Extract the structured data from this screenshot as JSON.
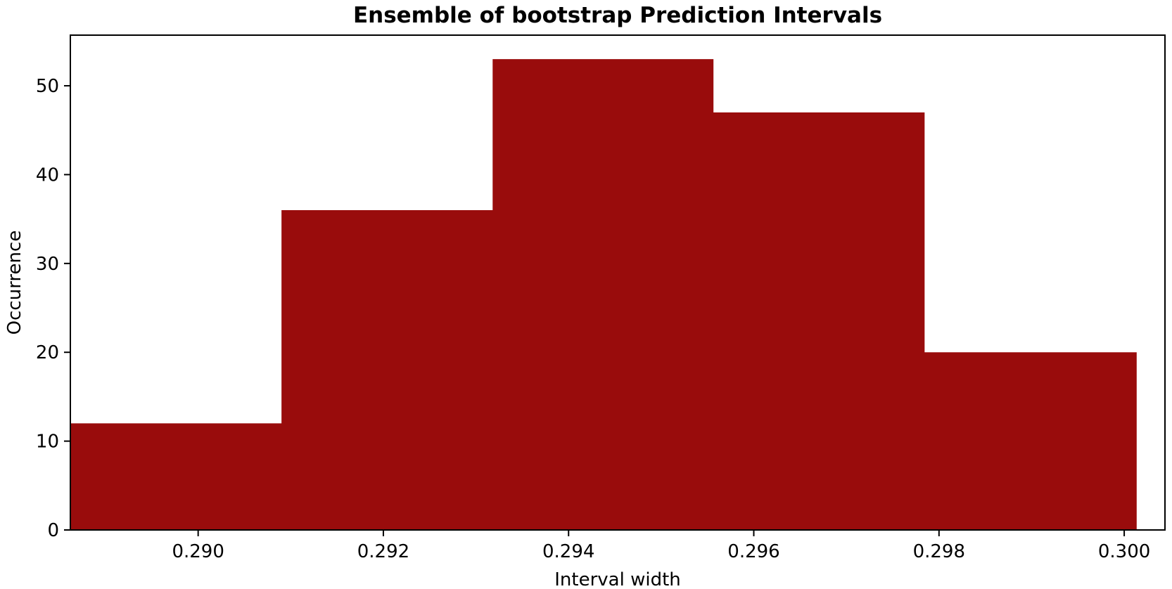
{
  "chart_data": {
    "type": "bar",
    "title": "Ensemble of bootstrap Prediction Intervals",
    "xlabel": "Interval width",
    "ylabel": "Occurrence",
    "bins": [
      {
        "x0": 0.28862,
        "x1": 0.2909,
        "value": 12
      },
      {
        "x0": 0.2909,
        "x1": 0.29318,
        "value": 36
      },
      {
        "x0": 0.29318,
        "x1": 0.29556,
        "value": 53
      },
      {
        "x0": 0.29556,
        "x1": 0.29784,
        "value": 47
      },
      {
        "x0": 0.29784,
        "x1": 0.30013,
        "value": 20
      }
    ],
    "xlim": [
      0.28862,
      0.30044
    ],
    "ylim": [
      0,
      55.7
    ],
    "xticks": [
      {
        "value": 0.29,
        "label": "0.290"
      },
      {
        "value": 0.292,
        "label": "0.292"
      },
      {
        "value": 0.294,
        "label": "0.294"
      },
      {
        "value": 0.296,
        "label": "0.296"
      },
      {
        "value": 0.298,
        "label": "0.298"
      },
      {
        "value": 0.3,
        "label": "0.300"
      }
    ],
    "yticks": [
      {
        "value": 0,
        "label": "0"
      },
      {
        "value": 10,
        "label": "10"
      },
      {
        "value": 20,
        "label": "20"
      },
      {
        "value": 30,
        "label": "30"
      },
      {
        "value": 40,
        "label": "40"
      },
      {
        "value": 50,
        "label": "50"
      }
    ],
    "bar_color": "#990c0c",
    "grid": false,
    "legend": false
  }
}
